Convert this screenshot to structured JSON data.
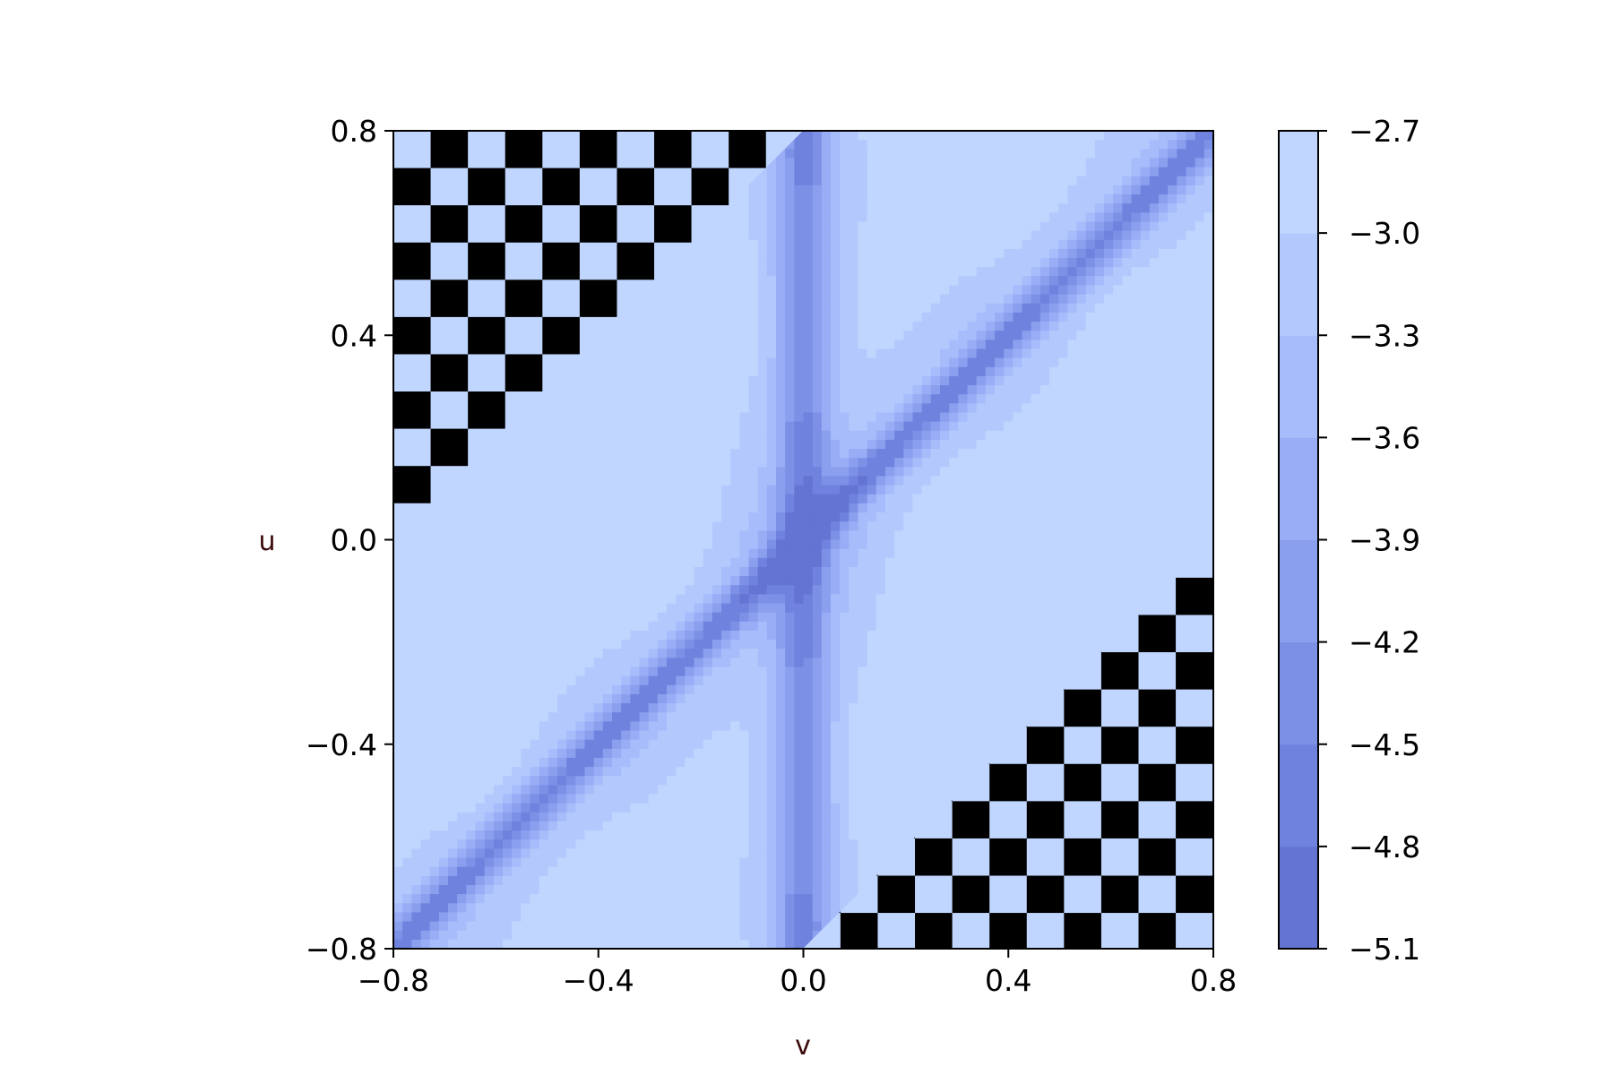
{
  "chart_data": {
    "type": "heatmap",
    "subtype": "filled-contour",
    "title": "",
    "xlabel": "v",
    "ylabel": "u",
    "xlim": [
      -0.8,
      0.8
    ],
    "ylim": [
      -0.8,
      0.8
    ],
    "x_ticks": [
      -0.8,
      -0.4,
      0.0,
      0.4,
      0.8
    ],
    "x_tick_labels": [
      "−0.8",
      "−0.4",
      "0.0",
      "0.4",
      "0.8"
    ],
    "y_ticks": [
      -0.8,
      -0.4,
      0.0,
      0.4,
      0.8
    ],
    "y_tick_labels": [
      "−0.8",
      "−0.4",
      "0.0",
      "0.4",
      "0.8"
    ],
    "grid": false,
    "colorbar": {
      "position": "right",
      "levels": [
        -5.1,
        -4.8,
        -4.5,
        -4.2,
        -3.9,
        -3.6,
        -3.3,
        -3.0,
        -2.7
      ],
      "tick_labels": [
        "−5.1",
        "−4.8",
        "−4.5",
        "−4.2",
        "−3.9",
        "−3.6",
        "−3.3",
        "−3.0",
        "−2.7"
      ],
      "colors": [
        "#6374d3",
        "#6f82de",
        "#7c90e6",
        "#8aa0ef",
        "#98adf5",
        "#a6bcfb",
        "#b3c9fd",
        "#c1d6fe"
      ]
    },
    "masked_regions": {
      "description": "checkerboard where |u - v| > 0.8",
      "upper_left": "u - v > 0.8",
      "lower_right": "v - u > 0.8",
      "colors": [
        "#c1d6fe",
        "#000000"
      ],
      "cell_size": 0.0727
    },
    "field_features": {
      "min_ridges": [
        "v = 0 (vertical)",
        "u = v (diagonal)"
      ],
      "max_near_edges": [
        "|u - v| = 0.8"
      ],
      "local_maxima": [
        [
          0.2,
          0.45
        ],
        [
          -0.25,
          0.0
        ],
        [
          0.25,
          0.0
        ],
        [
          -0.3,
          -0.45
        ],
        [
          0.3,
          0.75
        ]
      ]
    }
  },
  "colors": {
    "axis": "#000000",
    "label": "#3b0a0a",
    "background": "#ffffff"
  }
}
